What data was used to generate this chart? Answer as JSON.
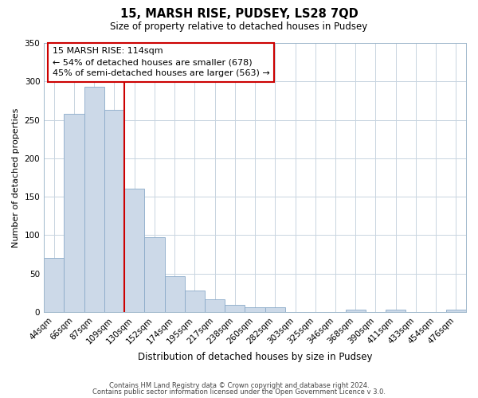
{
  "title": "15, MARSH RISE, PUDSEY, LS28 7QD",
  "subtitle": "Size of property relative to detached houses in Pudsey",
  "xlabel": "Distribution of detached houses by size in Pudsey",
  "ylabel": "Number of detached properties",
  "bar_color": "#ccd9e8",
  "bar_edge_color": "#8aaac8",
  "categories": [
    "44sqm",
    "66sqm",
    "87sqm",
    "109sqm",
    "130sqm",
    "152sqm",
    "174sqm",
    "195sqm",
    "217sqm",
    "238sqm",
    "260sqm",
    "282sqm",
    "303sqm",
    "325sqm",
    "346sqm",
    "368sqm",
    "390sqm",
    "411sqm",
    "433sqm",
    "454sqm",
    "476sqm"
  ],
  "values": [
    70,
    258,
    293,
    263,
    160,
    97,
    47,
    28,
    16,
    9,
    6,
    6,
    0,
    0,
    0,
    3,
    0,
    3,
    0,
    0,
    3
  ],
  "ylim": [
    0,
    350
  ],
  "yticks": [
    0,
    50,
    100,
    150,
    200,
    250,
    300,
    350
  ],
  "property_line_x": 3.5,
  "property_line_label": "15 MARSH RISE: 114sqm",
  "annotation_line1": "← 54% of detached houses are smaller (678)",
  "annotation_line2": "45% of semi-detached houses are larger (563) →",
  "vline_color": "#cc0000",
  "box_edge_color": "#cc0000",
  "footer_line1": "Contains HM Land Registry data © Crown copyright and database right 2024.",
  "footer_line2": "Contains public sector information licensed under the Open Government Licence v 3.0.",
  "background_color": "#ffffff",
  "grid_color": "#c8d4e0"
}
